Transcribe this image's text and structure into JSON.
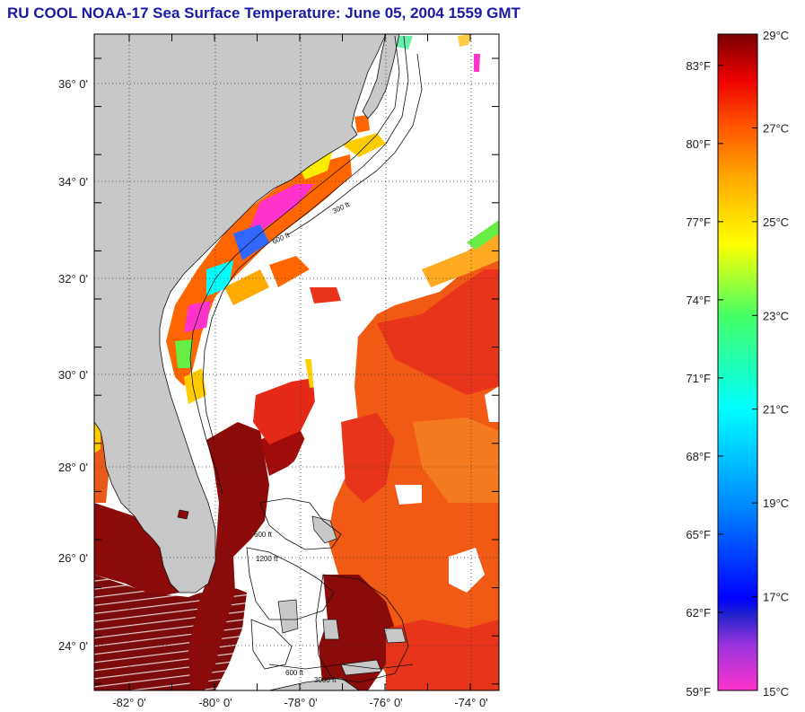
{
  "title": "RU COOL  NOAA-17  Sea Surface Temperature:  June 05, 2004 1559 GMT",
  "map": {
    "lat_labels": [
      "36° 0'",
      "34° 0'",
      "32° 0'",
      "30° 0'",
      "28° 0'",
      "26° 0'",
      "24° 0'"
    ],
    "lat_values": [
      36,
      34,
      32,
      30,
      28,
      26,
      24
    ],
    "lon_labels": [
      "-82° 0'",
      "-80° 0'",
      "-78° 0'",
      "-76° 0'",
      "-74° 0'"
    ],
    "lon_values": [
      -82,
      -80,
      -78,
      -76,
      -74
    ],
    "lat_range": [
      23.0,
      37.0
    ],
    "lon_range": [
      -83.0,
      -73.5
    ],
    "isobath_labels": [
      "300 ft",
      "600 ft",
      "600 ft",
      "1200 ft",
      "600 ft",
      "3000 ft"
    ]
  },
  "colorbar": {
    "celsius_labels": [
      "29°C",
      "27°C",
      "25°C",
      "23°C",
      "21°C",
      "19°C",
      "17°C",
      "15°C"
    ],
    "celsius_values": [
      29,
      27,
      25,
      23,
      21,
      19,
      17,
      15
    ],
    "fahrenheit_labels": [
      "83°F",
      "80°F",
      "77°F",
      "74°F",
      "71°F",
      "68°F",
      "65°F",
      "62°F",
      "59°F"
    ],
    "fahrenheit_values": [
      83,
      80,
      77,
      74,
      71,
      68,
      65,
      62,
      59
    ],
    "range_celsius": [
      15,
      29
    ]
  },
  "colors": {
    "land": "#c8c8c8",
    "cloud": "#ffffff",
    "warm_dark": "#8b0a0a",
    "warm": "#e8341a",
    "orange": "#f06a14",
    "title": "#1a1aa6"
  }
}
